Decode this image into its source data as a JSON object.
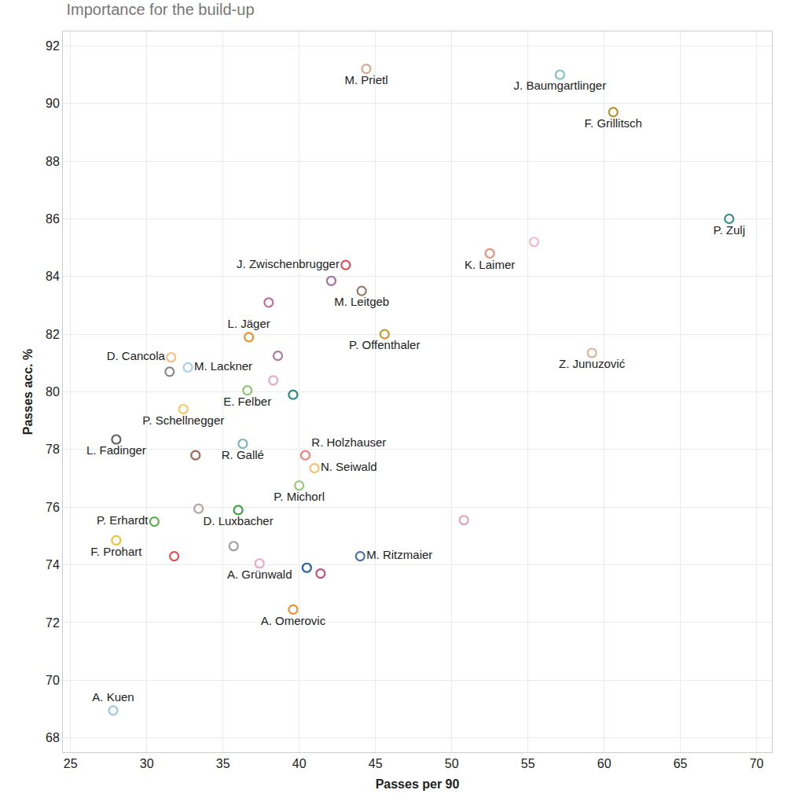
{
  "chart_data": {
    "type": "scatter",
    "title": "Importance for the build-up",
    "x_label": "Passes per 90",
    "y_label": "Passes acc. %",
    "marker": "circle-open",
    "grid": true,
    "xlim": [
      24.5,
      71
    ],
    "xticks": [
      25,
      30,
      35,
      40,
      45,
      50,
      55,
      60,
      65,
      70
    ],
    "ylim": [
      67.5,
      92.5
    ],
    "yticks": [
      68,
      70,
      72,
      74,
      76,
      78,
      80,
      82,
      84,
      86,
      88,
      90,
      92
    ],
    "labels": [
      "M. Prietl",
      "J. Baumgartlinger",
      "F. Grillitsch",
      "P. Zulj",
      "K. Laimer",
      null,
      "Z. Junuzović",
      "J. Zwischenbrugger",
      null,
      "M. Leitgeb",
      null,
      "L. Jäger",
      "P. Offenthaler",
      "D. Cancola",
      "M. Lackner",
      null,
      null,
      null,
      "E. Felber",
      null,
      "P. Schellnegger",
      "L. Fadinger",
      "R. Gallé",
      "R. Holzhauser",
      null,
      "N. Seiwald",
      "P. Michorl",
      null,
      "D. Luxbacher",
      "P. Erhardt",
      "F. Prohart",
      null,
      null,
      "A. Grünwald",
      null,
      null,
      "M. Ritzmaier",
      null,
      "A. Omerovic",
      "A. Kuen"
    ],
    "x": [
      44.4,
      57.1,
      60.6,
      68.2,
      52.5,
      55.4,
      59.2,
      43.05,
      42.1,
      44.1,
      38.0,
      36.7,
      45.6,
      31.6,
      32.7,
      31.5,
      38.6,
      38.3,
      36.6,
      39.6,
      32.4,
      28.0,
      36.3,
      40.4,
      33.2,
      41.0,
      40.0,
      33.4,
      36.0,
      30.5,
      28.0,
      31.8,
      35.7,
      37.4,
      40.5,
      41.4,
      44.0,
      50.8,
      39.6,
      27.8
    ],
    "y": [
      91.2,
      91.0,
      89.7,
      86.0,
      84.8,
      85.2,
      81.35,
      84.4,
      83.85,
      83.5,
      83.1,
      81.9,
      82.0,
      81.2,
      80.85,
      80.7,
      81.25,
      80.4,
      80.05,
      79.9,
      79.4,
      78.35,
      78.2,
      77.8,
      77.8,
      77.35,
      76.75,
      75.95,
      75.9,
      75.5,
      74.85,
      74.3,
      74.65,
      74.05,
      73.9,
      73.7,
      74.3,
      75.55,
      72.45,
      68.95
    ],
    "colors": [
      "#d4a98c",
      "#7fc4c4",
      "#b8902a",
      "#3a8f8f",
      "#e8917a",
      "#f4b8c8",
      "#d9b49a",
      "#e0505a",
      "#a870a8",
      "#9a7a6a",
      "#c86a98",
      "#e8902a",
      "#c89a30",
      "#f8c080",
      "#a8d0e8",
      "#888888",
      "#a87aa8",
      "#e8a8c8",
      "#88c870",
      "#2a8a8a",
      "#f8c860",
      "#606060",
      "#7ab8b8",
      "#f08080",
      "#9a6a5a",
      "#f8c070",
      "#98c878",
      "#b0a8a0",
      "#40a040",
      "#60b050",
      "#f0c040",
      "#e05050",
      "#a0a0a0",
      "#f0a8c8",
      "#3060a8",
      "#c05080",
      "#4a70b0",
      "#e8a0b8",
      "#f09030",
      "#98c8e8"
    ]
  }
}
